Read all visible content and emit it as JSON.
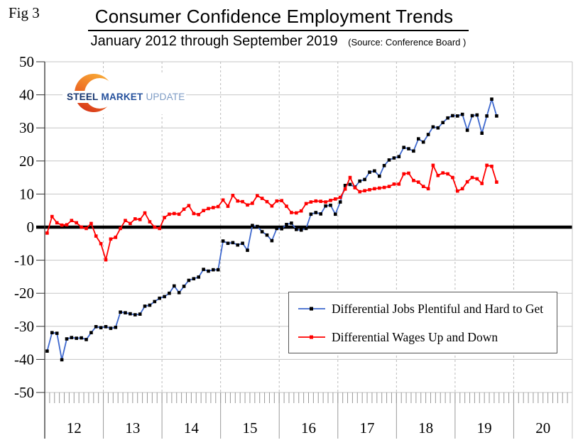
{
  "fig_label": "Fig 3",
  "header": {
    "title": "Consumer Confidence Employment Trends",
    "subtitle": "January 2012 through September 2019",
    "source": "(Source: Conference Board )"
  },
  "logo": {
    "word1": "STEEL",
    "word2": "MARKET",
    "word3": "UPDATE"
  },
  "colors": {
    "jobs_line": "#3e68ce",
    "jobs_marker": "#000000",
    "wages_line": "#ff0000",
    "wages_marker": "#ff0000",
    "gridline": "#c6c6c6",
    "year_gridline": "#bbbbbb",
    "zero_line": "#000000",
    "axis": "#333333",
    "tick": "#999999",
    "logo_orange": "#f8ab36",
    "logo_red": "#d63318",
    "logo_navy": "#16356e",
    "logo_blue": "#24509c",
    "logo_light_blue": "#7d9bc4"
  },
  "chart_data": {
    "type": "line",
    "title": "Consumer Confidence Employment Trends",
    "subtitle": "January 2012 through September 2019",
    "source": "(Source: Conference Board )",
    "x_axis": {
      "unit": "month",
      "start": "2012-01",
      "end": "2019-09",
      "n_points": 93,
      "year_labels": [
        "12",
        "13",
        "14",
        "15",
        "16",
        "17",
        "18",
        "19",
        "20"
      ]
    },
    "y_axis": {
      "min": -50,
      "max": 50,
      "step": 10,
      "ticks": [
        50,
        40,
        30,
        20,
        10,
        0,
        -10,
        -20,
        -30,
        -40,
        -50
      ]
    },
    "grid": "horizontal solid, vertical dashed at year boundaries",
    "legend_position": "inside lower-right box",
    "series": [
      {
        "name": "Differential Jobs Plentiful and Hard to Get",
        "color": "#3e68ce",
        "marker": "square",
        "marker_color": "#000000",
        "values": [
          -37.5,
          -31.9,
          -32.1,
          -40.1,
          -33.8,
          -33.4,
          -33.6,
          -33.5,
          -34.0,
          -31.9,
          -30.1,
          -30.4,
          -30.1,
          -30.6,
          -30.3,
          -25.7,
          -25.9,
          -26.2,
          -26.5,
          -26.3,
          -23.9,
          -23.6,
          -22.5,
          -21.5,
          -21.0,
          -20.0,
          -17.8,
          -19.8,
          -17.9,
          -16.1,
          -15.6,
          -15.1,
          -12.8,
          -13.3,
          -12.9,
          -12.9,
          -4.2,
          -4.9,
          -4.7,
          -5.4,
          -4.9,
          -7.0,
          0.5,
          0.2,
          -1.4,
          -2.4,
          -4.1,
          -0.4,
          -0.5,
          0.8,
          1.2,
          -0.7,
          -0.9,
          -0.4,
          3.9,
          4.4,
          4.0,
          6.4,
          6.6,
          3.9,
          7.6,
          12.6,
          12.9,
          12.1,
          13.9,
          14.4,
          16.6,
          17.0,
          15.4,
          18.6,
          20.3,
          20.9,
          21.3,
          24.1,
          23.7,
          23.0,
          26.7,
          25.7,
          28.0,
          30.3,
          30.0,
          31.6,
          33.0,
          33.7,
          33.6,
          34.1,
          29.3,
          33.7,
          33.9,
          28.4,
          33.6,
          38.7,
          33.6
        ]
      },
      {
        "name": "Differential Wages Up and Down",
        "color": "#ff0000",
        "marker": "square",
        "marker_color": "#ff0000",
        "values": [
          -1.8,
          3.2,
          1.3,
          0.6,
          0.7,
          2.0,
          1.3,
          0.0,
          -0.4,
          1.1,
          -2.7,
          -5.0,
          -9.9,
          -3.6,
          -3.1,
          -0.4,
          2.0,
          1.1,
          2.5,
          2.3,
          4.3,
          1.6,
          0.0,
          -0.4,
          2.9,
          3.9,
          4.1,
          3.9,
          5.4,
          6.5,
          4.1,
          3.8,
          5.0,
          5.6,
          5.9,
          6.2,
          8.2,
          6.3,
          9.6,
          7.9,
          7.7,
          6.7,
          7.2,
          9.5,
          8.7,
          7.7,
          6.4,
          7.9,
          8.0,
          6.3,
          4.4,
          4.3,
          4.9,
          7.1,
          7.6,
          7.9,
          7.8,
          7.6,
          8.1,
          8.5,
          9.0,
          11.5,
          15.0,
          11.9,
          10.7,
          11.0,
          11.3,
          11.6,
          11.8,
          12.0,
          12.3,
          13.0,
          13.0,
          16.1,
          16.3,
          14.1,
          13.6,
          12.3,
          11.6,
          18.7,
          15.6,
          16.4,
          16.1,
          15.0,
          10.9,
          11.6,
          13.7,
          15.0,
          14.6,
          13.2,
          18.7,
          18.4,
          13.6
        ]
      }
    ]
  }
}
